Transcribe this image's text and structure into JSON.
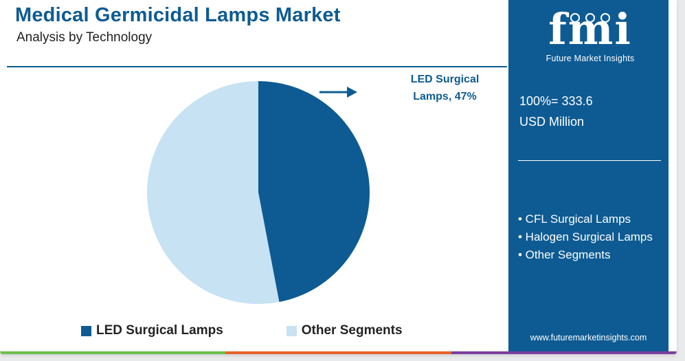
{
  "header": {
    "title": "Medical Germicidal Lamps Market",
    "subtitle": "Analysis by Technology"
  },
  "chart_data": {
    "type": "pie",
    "title": "Medical Germicidal Lamps Market",
    "subtitle": "Analysis by Technology",
    "slices": [
      {
        "name": "LED Surgical Lamps",
        "value": 47,
        "color": "#0e5b93"
      },
      {
        "name": "Other Segments",
        "value": 53,
        "color": "#c6e2f3"
      }
    ],
    "legend_position": "bottom",
    "annotation": {
      "line1": "LED Surgical",
      "line2": "Lamps, 47%"
    }
  },
  "legend": {
    "items": [
      {
        "label": "LED Surgical Lamps",
        "color": "#0e5b93"
      },
      {
        "label": "Other Segments",
        "color": "#c6e2f3"
      }
    ]
  },
  "side_panel": {
    "logo_text": "fmi",
    "logo_tagline": "Future Market Insights",
    "total_line1": "100%= 333.6",
    "total_line2": "USD Million",
    "other_segments": [
      "• CFL Surgical Lamps",
      "• Halogen Surgical Lamps",
      "• Other Segments"
    ],
    "website": "www.futuremarketinsights.com"
  },
  "colors": {
    "brand_blue": "#0e5b93",
    "light_blue": "#c6e2f3",
    "bar_green": "#6cbf4b",
    "bar_orange": "#e8622a",
    "bar_purple": "#7b3fa0"
  }
}
